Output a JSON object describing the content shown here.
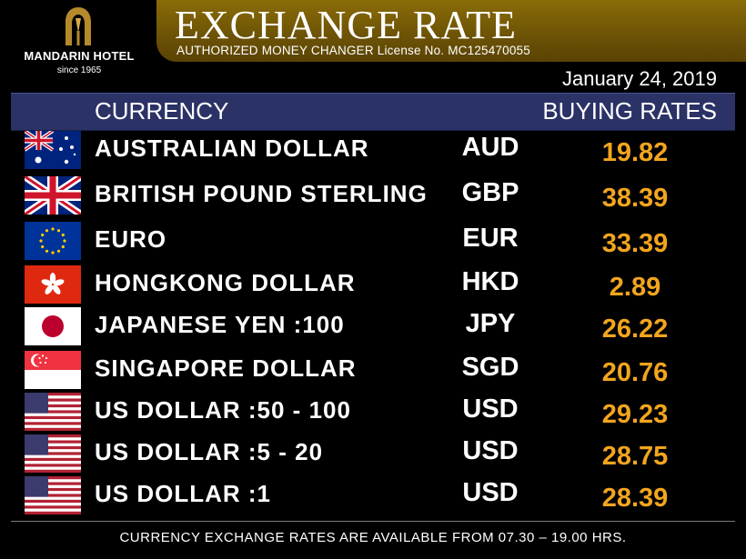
{
  "logo": {
    "name": "MANDARIN HOTEL",
    "since": "since 1965"
  },
  "banner": {
    "title": "EXCHANGE RATE",
    "subtitle": "AUTHORIZED  MONEY  CHANGER License No. MC125470055"
  },
  "date": "January 24, 2019",
  "header": {
    "currency_label": "CURRENCY",
    "rates_label": "BUYING RATES"
  },
  "rows": [
    {
      "flag": "australia-flag-icon",
      "name": "AUSTRALIAN  DOLLAR",
      "code": "AUD",
      "rate": "19.82"
    },
    {
      "flag": "uk-flag-icon",
      "name": "BRITISH POUND STERLING",
      "code": "GBP",
      "rate": "38.39"
    },
    {
      "flag": "eu-flag-icon",
      "name": "EURO",
      "code": "EUR",
      "rate": "33.39"
    },
    {
      "flag": "hongkong-flag-icon",
      "name": "HONGKONG  DOLLAR",
      "code": "HKD",
      "rate": "2.89"
    },
    {
      "flag": "japan-flag-icon",
      "name": "JAPANESE YEN :100",
      "code": "JPY",
      "rate": "26.22"
    },
    {
      "flag": "singapore-flag-icon",
      "name": "SINGAPORE  DOLLAR",
      "code": "SGD",
      "rate": "20.76"
    },
    {
      "flag": "us-flag-icon",
      "name": "US DOLLAR :50 - 100",
      "code": "USD",
      "rate": "29.23"
    },
    {
      "flag": "us-flag-icon",
      "name": "US DOLLAR :5 - 20",
      "code": "USD",
      "rate": "28.75"
    },
    {
      "flag": "us-flag-icon",
      "name": "US DOLLAR :1",
      "code": "USD",
      "rate": "28.39"
    }
  ],
  "footer": "CURRENCY EXCHANGE RATES ARE AVAILABLE FROM 07.30 – 19.00 HRS.",
  "colors": {
    "banner": "#6e5406",
    "header_bar": "#2b3266",
    "rate": "#f2a51e",
    "background": "#000000"
  }
}
